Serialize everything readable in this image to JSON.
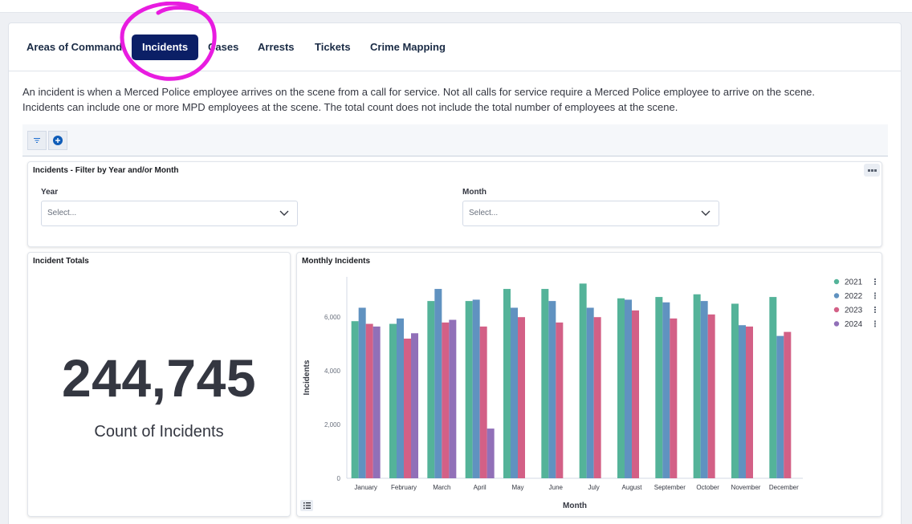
{
  "tabs": [
    {
      "label": "Areas of Command",
      "active": false
    },
    {
      "label": "Incidents",
      "active": true
    },
    {
      "label": "Cases",
      "active": false
    },
    {
      "label": "Arrests",
      "active": false
    },
    {
      "label": "Tickets",
      "active": false
    },
    {
      "label": "Crime Mapping",
      "active": false
    }
  ],
  "intro": {
    "line1": "An incident is when a Merced Police employee arrives on the scene from a call for service. Not all calls for service require a Merced Police employee to arrive on the scene.",
    "line2": "Incidents can include one or more MPD employees at the scene. The total count does not include the total number of employees at the scene."
  },
  "toolbar": {
    "filter_icon": "filter-icon",
    "add_icon": "plus-circle-icon"
  },
  "filter_panel": {
    "title": "Incidents - Filter by Year and/or Month",
    "year_label": "Year",
    "year_placeholder": "Select...",
    "month_label": "Month",
    "month_placeholder": "Select..."
  },
  "totals_panel": {
    "title": "Incident Totals",
    "value": "244,745",
    "caption": "Count of Incidents"
  },
  "chart_panel": {
    "title": "Monthly Incidents"
  },
  "colors": {
    "accent": "#0b1f66",
    "annotation": "#e81ce0"
  },
  "chart_data": {
    "type": "bar",
    "title": "Monthly Incidents",
    "xlabel": "Month",
    "ylabel": "Incidents",
    "ylim": [
      0,
      7500
    ],
    "yticks": [
      0,
      2000,
      4000,
      6000
    ],
    "ytick_labels": [
      "0",
      "2,000",
      "4,000",
      "6,000"
    ],
    "legend_position": "top-right",
    "categories": [
      "January",
      "February",
      "March",
      "April",
      "May",
      "June",
      "July",
      "August",
      "September",
      "October",
      "November",
      "December"
    ],
    "series": [
      {
        "name": "2021",
        "color": "#54b399",
        "values": [
          5850,
          5750,
          6600,
          6600,
          7050,
          7050,
          7250,
          6700,
          6750,
          6850,
          6500,
          6750
        ]
      },
      {
        "name": "2022",
        "color": "#6092c0",
        "values": [
          6350,
          5950,
          7050,
          6650,
          6350,
          6600,
          6350,
          6650,
          6550,
          6600,
          5700,
          5300
        ]
      },
      {
        "name": "2023",
        "color": "#d36086",
        "values": [
          5750,
          5200,
          5800,
          5650,
          6000,
          5800,
          6000,
          6250,
          5950,
          6100,
          5650,
          5450
        ]
      },
      {
        "name": "2024",
        "color": "#9170b8",
        "values": [
          5650,
          5400,
          5900,
          1850,
          null,
          null,
          null,
          null,
          null,
          null,
          null,
          null
        ]
      }
    ]
  }
}
